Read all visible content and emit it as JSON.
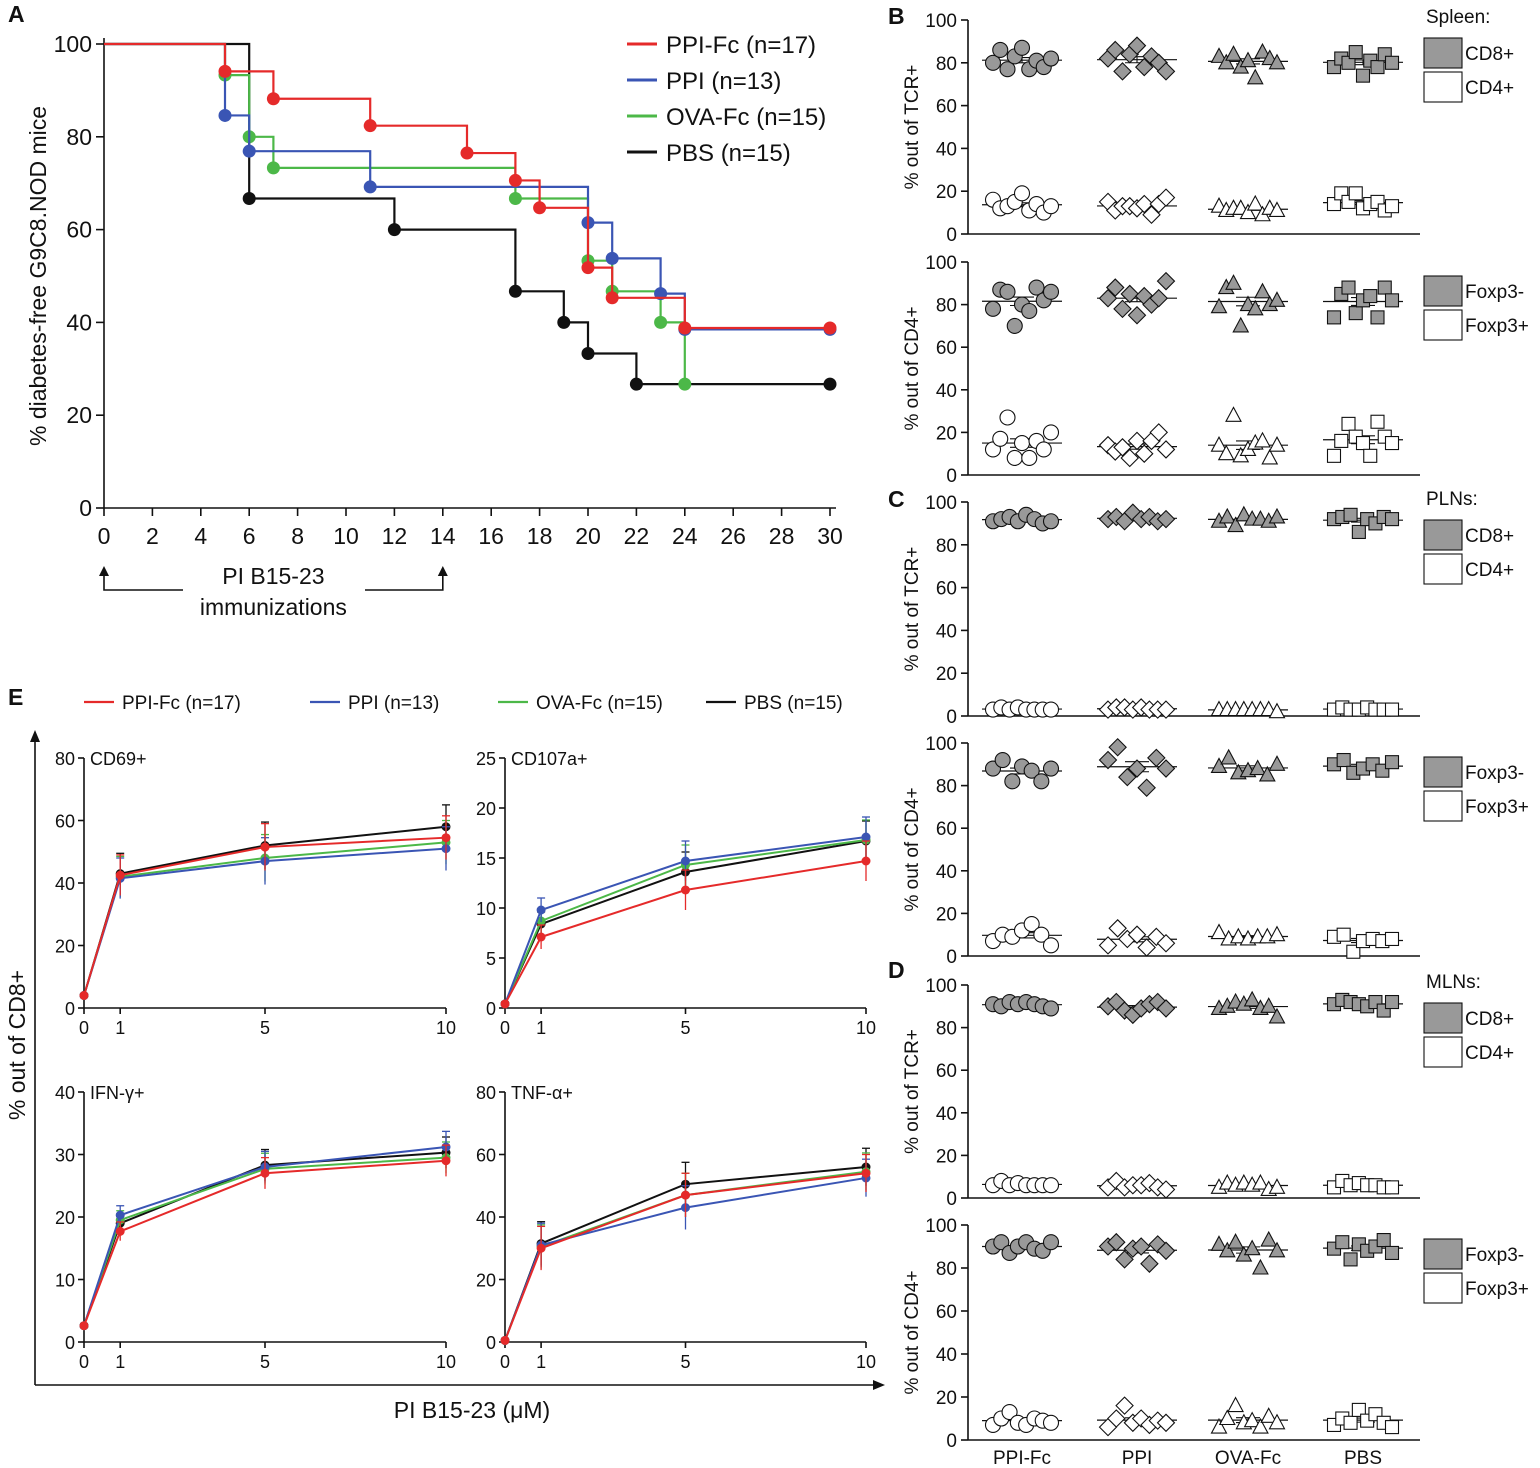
{
  "panel_labels": {
    "A": "A",
    "B": "B",
    "C": "C",
    "D": "D",
    "E": "E"
  },
  "colors": {
    "PPI-Fc": "#e52a2a",
    "PPI": "#3a55b4",
    "OVA-Fc": "#4cb848",
    "PBS": "#111111",
    "grey_fill": "#999999"
  },
  "chart_data": [
    {
      "id": "A",
      "type": "line",
      "subtype": "kaplan-meier",
      "ylabel": "% diabetes-free G9C8.NOD mice",
      "xlabel": "",
      "xlim": [
        0,
        30
      ],
      "ylim": [
        0,
        100
      ],
      "xticks": [
        0,
        2,
        4,
        6,
        8,
        10,
        12,
        14,
        16,
        18,
        20,
        22,
        24,
        26,
        28,
        30
      ],
      "yticks": [
        0,
        20,
        40,
        60,
        80,
        100
      ],
      "annotation": {
        "line1": "PI B15-23",
        "line2": "immunizations",
        "range": [
          0,
          14
        ]
      },
      "series": [
        {
          "name": "PPI-Fc (n=17)",
          "key": "PPI-Fc",
          "steps": [
            [
              0,
              100
            ],
            [
              5,
              94.1
            ],
            [
              7,
              88.2
            ],
            [
              11,
              82.4
            ],
            [
              15,
              76.5
            ],
            [
              17,
              70.6
            ],
            [
              18,
              64.7
            ],
            [
              19,
              64.7
            ],
            [
              20,
              51.8
            ],
            [
              21,
              45.3
            ],
            [
              24,
              38.8
            ],
            [
              30,
              38.8
            ]
          ]
        },
        {
          "name": "PPI (n=13)",
          "key": "PPI",
          "steps": [
            [
              0,
              100
            ],
            [
              5,
              84.6
            ],
            [
              6,
              76.9
            ],
            [
              11,
              69.2
            ],
            [
              20,
              61.5
            ],
            [
              21,
              53.8
            ],
            [
              23,
              46.2
            ],
            [
              24,
              38.5
            ],
            [
              30,
              38.5
            ]
          ]
        },
        {
          "name": "OVA-Fc (n=15)",
          "key": "OVA-Fc",
          "steps": [
            [
              0,
              100
            ],
            [
              5,
              93.3
            ],
            [
              6,
              80
            ],
            [
              7,
              73.3
            ],
            [
              17,
              66.7
            ],
            [
              20,
              53.3
            ],
            [
              21,
              46.7
            ],
            [
              23,
              40
            ],
            [
              24,
              26.7
            ]
          ]
        },
        {
          "name": "PBS (n=15)",
          "key": "PBS",
          "steps": [
            [
              0,
              100
            ],
            [
              6,
              66.7
            ],
            [
              12,
              60
            ],
            [
              17,
              46.7
            ],
            [
              19,
              40
            ],
            [
              20,
              33.3
            ],
            [
              22,
              26.7
            ],
            [
              30,
              26.7
            ]
          ]
        }
      ]
    },
    {
      "id": "E",
      "type": "line",
      "xlabel": "PI B15-23 (μM)",
      "ylabel": "% out of CD8+",
      "legend": [
        "PPI-Fc (n=17)",
        "PPI (n=13)",
        "OVA-Fc (n=15)",
        "PBS (n=15)"
      ],
      "x": [
        0,
        1,
        5,
        10
      ],
      "panels": [
        {
          "title": "CD69+",
          "ylim": [
            0,
            80
          ],
          "yticks": [
            0,
            20,
            40,
            60,
            80
          ],
          "series": {
            "PPI-Fc": [
              4,
              42.5,
              51.5,
              54.5
            ],
            "PPI": [
              4,
              41.5,
              47,
              51
            ],
            "OVA-Fc": [
              4,
              42,
              48,
              53
            ],
            "PBS": [
              4,
              43,
              52,
              58
            ]
          },
          "err": [
            0.5,
            6.5,
            7.5,
            7
          ]
        },
        {
          "title": "CD107a+",
          "ylim": [
            0,
            25
          ],
          "yticks": [
            0,
            5,
            10,
            15,
            20,
            25
          ],
          "series": {
            "PPI-Fc": [
              0.4,
              7.1,
              11.8,
              14.7
            ],
            "PPI": [
              0.4,
              9.8,
              14.7,
              17.1
            ],
            "OVA-Fc": [
              0.4,
              8.7,
              14.3,
              16.8
            ],
            "PBS": [
              0.4,
              8.4,
              13.6,
              16.7
            ]
          },
          "err": [
            0.2,
            1.2,
            2,
            2
          ]
        },
        {
          "title": "IFN-γ+",
          "ylim": [
            0,
            40
          ],
          "yticks": [
            0,
            10,
            20,
            30,
            40
          ],
          "series": {
            "PPI-Fc": [
              2.6,
              17.7,
              27,
              29
            ],
            "PPI": [
              2.6,
              20.3,
              28,
              31.2
            ],
            "OVA-Fc": [
              2.6,
              19.5,
              27.7,
              29.5
            ],
            "PBS": [
              2.6,
              19,
              28.3,
              30.3
            ]
          },
          "err": [
            0.3,
            1.5,
            2.5,
            2.5
          ]
        },
        {
          "title": "TNF-α+",
          "ylim": [
            0,
            80
          ],
          "yticks": [
            0,
            20,
            40,
            60,
            80
          ],
          "series": {
            "PPI-Fc": [
              0.5,
              30,
              47,
              54
            ],
            "PPI": [
              0.5,
              31,
              43,
              52.5
            ],
            "OVA-Fc": [
              0.5,
              30.5,
              47,
              54.5
            ],
            "PBS": [
              0.5,
              31.5,
              50.5,
              56
            ]
          },
          "err": [
            0.3,
            7,
            7,
            6
          ]
        }
      ]
    },
    {
      "id": "BCD",
      "type": "scatter",
      "categories": [
        "PPI-Fc",
        "PPI",
        "OVA-Fc",
        "PBS"
      ],
      "yticks": [
        0,
        20,
        40,
        60,
        80,
        100
      ],
      "ylim": [
        0,
        100
      ],
      "markers": {
        "PPI-Fc": "circle",
        "PPI": "diamond",
        "OVA-Fc": "triangle",
        "PBS": "square"
      },
      "plots": [
        {
          "section": "Spleen:",
          "ylabel": "% out of TCR+",
          "legend": [
            "CD8+",
            "CD4+"
          ],
          "groups": {
            "PPI-Fc": {
              "hi": [
                80,
                86,
                77,
                83,
                87,
                77,
                81,
                78,
                82
              ],
              "lo": [
                16,
                12,
                13,
                15,
                19,
                11,
                14,
                10,
                13
              ]
            },
            "PPI": {
              "hi": [
                82,
                86,
                76,
                84,
                88,
                78,
                83,
                80,
                76
              ],
              "lo": [
                15,
                11,
                13,
                13,
                12,
                14,
                9,
                14,
                17
              ]
            },
            "OVA-Fc": {
              "hi": [
                83,
                80,
                84,
                78,
                81,
                73,
                85,
                82,
                80
              ],
              "lo": [
                13,
                11,
                12,
                12,
                10,
                14,
                9,
                12,
                11
              ]
            },
            "PBS": {
              "hi": [
                78,
                82,
                80,
                85,
                74,
                81,
                78,
                84,
                80
              ],
              "lo": [
                14,
                19,
                15,
                19,
                12,
                14,
                15,
                11,
                13
              ]
            }
          }
        },
        {
          "section": "",
          "ylabel": "% out of CD4+",
          "legend": [
            "Foxp3-",
            "Foxp3+"
          ],
          "groups": {
            "PPI-Fc": {
              "hi": [
                78,
                87,
                86,
                70,
                80,
                77,
                88,
                82,
                86
              ],
              "lo": [
                12,
                17,
                27,
                8,
                15,
                8,
                16,
                12,
                20
              ]
            },
            "PPI": {
              "hi": [
                83,
                88,
                78,
                85,
                75,
                84,
                80,
                83,
                91
              ],
              "lo": [
                14,
                11,
                13,
                8,
                16,
                10,
                16,
                20,
                12
              ]
            },
            "OVA-Fc": {
              "hi": [
                79,
                88,
                90,
                70,
                80,
                78,
                86,
                80,
                82
              ],
              "lo": [
                14,
                10,
                28,
                9,
                12,
                15,
                16,
                8,
                14
              ]
            },
            "PBS": {
              "hi": [
                74,
                85,
                88,
                76,
                82,
                84,
                74,
                88,
                82
              ],
              "lo": [
                9,
                16,
                24,
                18,
                15,
                9,
                25,
                18,
                15
              ]
            }
          }
        },
        {
          "section": "PLNs:",
          "ylabel": "% out of TCR+",
          "legend": [
            "CD8+",
            "CD4+"
          ],
          "groups": {
            "PPI-Fc": {
              "hi": [
                91,
                92,
                93,
                91,
                94,
                92,
                90,
                91
              ],
              "lo": [
                3,
                4,
                3,
                4,
                3,
                3,
                3,
                3
              ]
            },
            "PPI": {
              "hi": [
                92,
                93,
                91,
                95,
                92,
                93,
                91,
                92
              ],
              "lo": [
                3,
                4,
                4,
                3,
                4,
                3,
                3,
                3
              ]
            },
            "OVA-Fc": {
              "hi": [
                91,
                93,
                89,
                94,
                92,
                92,
                91,
                93
              ],
              "lo": [
                3,
                3,
                3,
                3,
                3,
                3,
                3,
                2
              ]
            },
            "PBS": {
              "hi": [
                92,
                93,
                94,
                86,
                92,
                90,
                93,
                92
              ],
              "lo": [
                3,
                4,
                3,
                3,
                4,
                3,
                3,
                3
              ]
            }
          }
        },
        {
          "section": "",
          "ylabel": "% out of CD4+",
          "legend": [
            "Foxp3-",
            "Foxp3+"
          ],
          "groups": {
            "PPI-Fc": {
              "hi": [
                88,
                92,
                82,
                89,
                87,
                82,
                88
              ],
              "lo": [
                7,
                10,
                9,
                12,
                15,
                10,
                5
              ]
            },
            "PPI": {
              "hi": [
                92,
                98,
                84,
                88,
                79,
                93,
                88
              ],
              "lo": [
                5,
                13,
                8,
                10,
                4,
                9,
                6
              ]
            },
            "OVA-Fc": {
              "hi": [
                89,
                93,
                86,
                87,
                88,
                85,
                90
              ],
              "lo": [
                11,
                8,
                9,
                8,
                9,
                9,
                10
              ]
            },
            "PBS": {
              "hi": [
                90,
                92,
                86,
                88,
                90,
                87,
                91
              ],
              "lo": [
                9,
                10,
                2,
                7,
                8,
                7,
                8
              ]
            }
          }
        },
        {
          "section": "MLNs:",
          "ylabel": "% out of TCR+",
          "legend": [
            "CD8+",
            "CD4+"
          ],
          "groups": {
            "PPI-Fc": {
              "hi": [
                91,
                90,
                92,
                91,
                92,
                91,
                90,
                89
              ],
              "lo": [
                6,
                8,
                6,
                7,
                6,
                6,
                6,
                6
              ]
            },
            "PPI": {
              "hi": [
                90,
                92,
                88,
                86,
                89,
                91,
                92,
                89
              ],
              "lo": [
                5,
                8,
                5,
                6,
                6,
                7,
                5,
                4
              ]
            },
            "OVA-Fc": {
              "hi": [
                89,
                90,
                92,
                91,
                93,
                89,
                90,
                85
              ],
              "lo": [
                5,
                7,
                6,
                7,
                6,
                7,
                4,
                5
              ]
            },
            "PBS": {
              "hi": [
                91,
                93,
                92,
                91,
                90,
                92,
                88,
                92
              ],
              "lo": [
                5,
                8,
                6,
                7,
                6,
                6,
                5,
                5
              ]
            }
          }
        },
        {
          "section": "",
          "ylabel": "% out of CD4+",
          "legend": [
            "Foxp3-",
            "Foxp3+"
          ],
          "groups": {
            "PPI-Fc": {
              "hi": [
                90,
                92,
                87,
                90,
                92,
                89,
                88,
                92
              ],
              "lo": [
                7,
                10,
                13,
                8,
                7,
                10,
                9,
                8
              ]
            },
            "PPI": {
              "hi": [
                90,
                92,
                84,
                89,
                90,
                82,
                91,
                88
              ],
              "lo": [
                6,
                10,
                16,
                8,
                10,
                7,
                9,
                8
              ]
            },
            "OVA-Fc": {
              "hi": [
                91,
                88,
                92,
                86,
                89,
                80,
                93,
                88
              ],
              "lo": [
                6,
                10,
                16,
                8,
                9,
                6,
                11,
                8
              ]
            },
            "PBS": {
              "hi": [
                89,
                92,
                84,
                91,
                88,
                90,
                93,
                87
              ],
              "lo": [
                7,
                10,
                8,
                14,
                9,
                12,
                8,
                6
              ]
            }
          }
        }
      ]
    }
  ]
}
